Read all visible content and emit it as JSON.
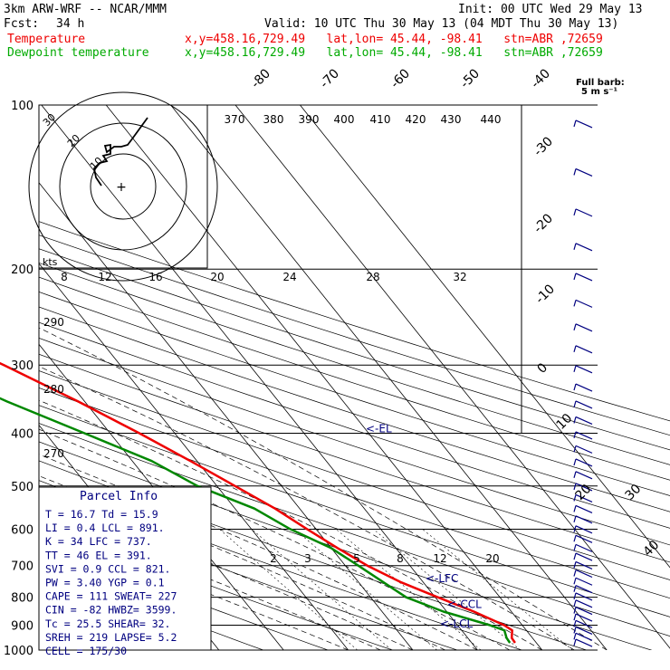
{
  "header": {
    "title": "3km ARW-WRF -- NCAR/MMM",
    "init": "Init: 00 UTC Wed 29 May 13",
    "fcst_label": "Fcst:",
    "fcst_value": "34 h",
    "valid": "Valid: 10 UTC Thu 30 May 13 (04 MDT Thu 30 May 13)",
    "temp_label": "Temperature",
    "temp_loc": "x,y=458.16,729.49   lat,lon= 45.44, -98.41   stn=ABR ,72659",
    "dew_label": "Dewpoint temperature",
    "dew_loc": "x,y=458.16,729.49   lat,lon= 45.44, -98.41   stn=ABR ,72659"
  },
  "colors": {
    "temperature": "#ee0000",
    "dewpoint": "#008800",
    "barbs": "#000080",
    "grid": "#000000",
    "hodograph": "#000000"
  },
  "full_barb_label": "Full barb:",
  "full_barb_units": "5 m s⁻¹",
  "chart_data": {
    "type": "line",
    "title": "",
    "y_scale": "log-pressure",
    "ylim": [
      1000,
      100
    ],
    "pressure_levels": [
      100,
      200,
      300,
      400,
      500,
      600,
      700,
      800,
      900,
      1000
    ],
    "isotherm_labels": [
      "-80",
      "-70",
      "-60",
      "-50",
      "-40",
      "-30",
      "-20",
      "-10",
      "0",
      "10",
      "20",
      "30",
      "40"
    ],
    "theta_labels": [
      "370",
      "380",
      "390",
      "400",
      "410",
      "420",
      "430",
      "440"
    ],
    "mixing_ratio_labels": [
      "2",
      "3",
      "5",
      "8",
      "12",
      "20"
    ],
    "dry_adiabat_labels": [
      "290",
      "280",
      "270"
    ],
    "marker_labels": {
      "el": "<-EL",
      "lfc": "<-LFC",
      "ccl": "<-CCL",
      "lcl": "<-LCL"
    },
    "series": [
      {
        "name": "Temperature",
        "points": [
          [
            970,
            16.7
          ],
          [
            950,
            16.8
          ],
          [
            920,
            17.8
          ],
          [
            900,
            17.2
          ],
          [
            850,
            14.2
          ],
          [
            800,
            10.4
          ],
          [
            750,
            6.5
          ],
          [
            700,
            3.4
          ],
          [
            650,
            1.0
          ],
          [
            600,
            -1.4
          ],
          [
            550,
            -3.8
          ],
          [
            500,
            -7.2
          ],
          [
            450,
            -11.0
          ],
          [
            400,
            -15.5
          ],
          [
            350,
            -21.0
          ],
          [
            300,
            -28.0
          ],
          [
            250,
            -37.0
          ],
          [
            200,
            -49.0
          ],
          [
            180,
            -53.5
          ],
          [
            160,
            -54.5
          ],
          [
            140,
            -54.0
          ],
          [
            120,
            -57.5
          ],
          [
            100,
            -58.0
          ]
        ]
      },
      {
        "name": "Dewpoint temperature",
        "points": [
          [
            970,
            15.9
          ],
          [
            950,
            16.0
          ],
          [
            920,
            16.6
          ],
          [
            900,
            15.0
          ],
          [
            850,
            9.5
          ],
          [
            800,
            5.5
          ],
          [
            700,
            2.0
          ],
          [
            650,
            0.0
          ],
          [
            600,
            -4.0
          ],
          [
            550,
            -7.0
          ],
          [
            500,
            -13.0
          ],
          [
            450,
            -17.0
          ],
          [
            400,
            -24.0
          ],
          [
            350,
            -32.0
          ],
          [
            300,
            -40.0
          ],
          [
            250,
            -50.0
          ],
          [
            200,
            -61.0
          ],
          [
            180,
            -63.0
          ],
          [
            160,
            -58.0
          ],
          [
            140,
            -57.0
          ],
          [
            120,
            -75.0
          ],
          [
            100,
            -75.0
          ]
        ]
      }
    ]
  },
  "hodograph": {
    "axis_label": "kts",
    "speed_labels": [
      "8",
      "12",
      "16",
      "20",
      "24",
      "28",
      "32"
    ],
    "ring_labels": [
      "30",
      "20",
      "10"
    ]
  },
  "parcel_info": {
    "title": "Parcel Info",
    "rows": [
      "T   =   16.7 Td =  15.9",
      "LI  =    0.4 LCL =  891.",
      "K   =     34 LFC =  737.",
      "TT  =     46 EL  =  391.",
      "SVI =    0.9 CCL =  821.",
      "PW  =   3.40 YGP =   0.1",
      "CAPE =   111 SWEAT=  227",
      "CIN =    -82 HWBZ= 3599.",
      "Tc  =   25.5 SHEAR=  32.",
      "SREH =   219 LAPSE=  5.2",
      "CELL = 175/30"
    ]
  }
}
